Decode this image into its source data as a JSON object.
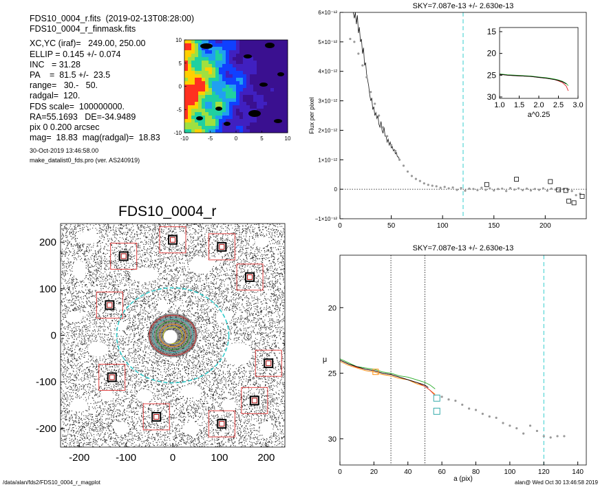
{
  "info": {
    "lines": [
      "FDS10_0004_r.fits  (2019-02-13T08:28:00)",
      "FDS10_0004_r_finmask.fits",
      "",
      "XC,YC (iraf)=   249.00, 250.00",
      "ELLIP = 0.145 +/- 0.074",
      "INC   = 31.28",
      "PA    =  81.5 +/-  23.5",
      "range=   30.-   50.",
      "radgal=  120.",
      "FDS scale=  100000000.",
      "RA=55.1693   DE=-34.9489",
      "pix 0 0.200 arcsec",
      "mag=  18.83  mag(radgal)=  18.83"
    ],
    "date_line": "30-Oct-2019 13:46:58.00",
    "program_line": "make_datalist0_fds.pro (ver. AS240919)"
  },
  "image_title": "FDS10_0004_r",
  "footer": {
    "path": "/data/alan/fds2/FDS10_0004_r_magplot",
    "stamp": "alan@  Wed Oct 30 13:46:58 2019"
  },
  "colors": {
    "axis": "#000000",
    "cyan_dash": "#33cccc",
    "red_box": "#e03030",
    "green": "#22aa22",
    "orange": "#ff8800",
    "red": "#dd2222",
    "magenta": "#aa2266",
    "gray_pts": "#999999"
  },
  "chart_data": [
    {
      "id": "thumbnail",
      "type": "heatmap",
      "title": "",
      "x_ticks": [
        "-10",
        "-5",
        "0",
        "5",
        "10"
      ],
      "y_ticks": [
        "10",
        "5",
        "0",
        "-5",
        "-10"
      ],
      "xlim": [
        -10,
        10
      ],
      "ylim": [
        -10,
        10
      ]
    },
    {
      "id": "sky_flux",
      "type": "line",
      "title": "SKY=7.087e-13 +/- 2.630e-13",
      "ylabel": "Flux per pixel",
      "xlabel": "",
      "xlim": [
        0,
        240
      ],
      "ylim": [
        -1e-12,
        6e-12
      ],
      "x_ticks": [
        "0",
        "50",
        "100",
        "150",
        "200"
      ],
      "y_ticks": [
        "6×10⁻¹²",
        "5×10⁻¹²",
        "4×10⁻¹²",
        "3×10⁻¹²",
        "2×10⁻¹²",
        "1×10⁻¹²",
        "0",
        "−1×10⁻¹²"
      ],
      "vline_x": 120,
      "series": [
        {
          "style": "line",
          "x": [
            13,
            14,
            15,
            16,
            17,
            18,
            19,
            20,
            21,
            22,
            23,
            24,
            25,
            26,
            27,
            28,
            29,
            30,
            31,
            32,
            33,
            34,
            35,
            36,
            37,
            38,
            39,
            40,
            41,
            42,
            43,
            44,
            45,
            46,
            47,
            48,
            49,
            50,
            51,
            52,
            53,
            54,
            55,
            56,
            57,
            58
          ],
          "y": [
            6e-12,
            5.8e-12,
            6e-12,
            5.6e-12,
            5.9e-12,
            5.3e-12,
            5.5e-12,
            5e-12,
            5.1e-12,
            4.6e-12,
            4.8e-12,
            4.2e-12,
            4.3e-12,
            3.9e-12,
            3.7e-12,
            3.5e-12,
            3.2e-12,
            3e-12,
            3.1e-12,
            2.7e-12,
            2.8e-12,
            2.5e-12,
            2.6e-12,
            2.4e-12,
            2.5e-12,
            2.2e-12,
            2.1e-12,
            2.3e-12,
            2e-12,
            1.9e-12,
            2.1e-12,
            1.8e-12,
            1.8e-12,
            1.6e-12,
            1.7e-12,
            1.5e-12,
            1.6e-12,
            1.4e-12,
            1.45e-12,
            1.3e-12,
            1.35e-12,
            1.2e-12,
            1.25e-12,
            1.1e-12,
            1.1e-12,
            1e-12
          ]
        },
        {
          "style": "points",
          "x": [
            10,
            14,
            18,
            22,
            26,
            30,
            34,
            38,
            42,
            46,
            50,
            54,
            58,
            62,
            66,
            70,
            74,
            78,
            82,
            86,
            90,
            94,
            98,
            102,
            106,
            110,
            114,
            118,
            122,
            126,
            130,
            134,
            138,
            142,
            146,
            150,
            154,
            158,
            162,
            166,
            170,
            174,
            178,
            182,
            186,
            190,
            194,
            198,
            202,
            206,
            210,
            214,
            218,
            222,
            226,
            230,
            234
          ],
          "y": [
            5.1e-12,
            5e-12,
            4.6e-12,
            4.2e-12,
            3.8e-12,
            3.3e-12,
            2.9e-12,
            2.5e-12,
            2.1e-12,
            1.8e-12,
            1.5e-12,
            1.3e-12,
            1e-12,
            8e-13,
            6e-13,
            4.5e-13,
            3.5e-13,
            2.8e-13,
            2e-13,
            1.5e-13,
            1.2e-13,
            1e-13,
            5e-14,
            8e-14,
            3e-14,
            6e-14,
            -2e-14,
            4e-14,
            -5e-14,
            2e-14,
            1e-14,
            -3e-14,
            5e-14,
            -2e-14,
            3e-14,
            -4e-14,
            1e-14,
            2e-14,
            -6e-14,
            4e-14,
            -1e-14,
            3e-14,
            -3e-14,
            2e-14,
            -4e-14,
            1e-14,
            -2e-14,
            3e-14,
            -5e-14,
            2e-14,
            -1e-14,
            -3e-14,
            1e-14,
            -2e-14,
            -6e-14,
            -2e-13,
            -1.5e-13
          ]
        },
        {
          "style": "squares",
          "x": [
            143,
            172,
            205,
            213,
            220,
            223,
            228,
            236
          ],
          "y": [
            1.6e-13,
            3.4e-13,
            2.6e-13,
            -2e-14,
            -4e-14,
            -4e-13,
            -4.6e-13,
            -2.4e-13
          ]
        }
      ]
    },
    {
      "id": "inset",
      "type": "line",
      "title": "",
      "xlabel": "a^0.25",
      "ylabel": "",
      "xlim": [
        1.0,
        3.0
      ],
      "ylim": [
        30,
        15
      ],
      "x_ticks": [
        "1.0",
        "1.5",
        "2.0",
        "2.5",
        "3.0"
      ],
      "y_ticks": [
        "15",
        "20",
        "25",
        "30"
      ],
      "series": [
        {
          "name": "",
          "style": "red",
          "x": [
            1.0,
            1.2,
            1.4,
            1.6,
            1.8,
            2.0,
            2.2,
            2.4,
            2.5,
            2.6,
            2.7,
            2.75
          ],
          "y": [
            24.8,
            25.0,
            25.1,
            25.2,
            25.3,
            25.5,
            25.7,
            26.0,
            26.3,
            26.7,
            27.5,
            28.6
          ]
        },
        {
          "name": "",
          "style": "green",
          "x": [
            1.0,
            1.2,
            1.4,
            1.6,
            1.8,
            2.0,
            2.2,
            2.4,
            2.5,
            2.6,
            2.7,
            2.75
          ],
          "y": [
            24.7,
            24.9,
            25.0,
            25.1,
            25.2,
            25.4,
            25.6,
            25.9,
            26.1,
            26.4,
            26.9,
            27.4
          ]
        },
        {
          "name": "",
          "style": "black",
          "x": [
            1.0,
            1.2,
            1.4,
            1.6,
            1.8,
            2.0,
            2.2,
            2.4,
            2.5,
            2.6,
            2.7
          ],
          "y": [
            24.8,
            25.0,
            25.1,
            25.2,
            25.3,
            25.5,
            25.7,
            26.0,
            26.2,
            26.5,
            27.0
          ]
        }
      ]
    },
    {
      "id": "mu_profile",
      "type": "line",
      "title": "SKY=7.087e-13 +/- 2.630e-13",
      "xlabel": "a (pix)",
      "ylabel": "μ",
      "xlim": [
        0,
        145
      ],
      "ylim": [
        32,
        16
      ],
      "x_ticks": [
        "0",
        "20",
        "40",
        "60",
        "80",
        "100",
        "120",
        "140"
      ],
      "y_ticks": [
        "20",
        "25",
        "30"
      ],
      "vlines_dotted": [
        30,
        50
      ],
      "vline_dashed": 120,
      "series": [
        {
          "name": "",
          "style": "green",
          "x": [
            0,
            5,
            10,
            15,
            20,
            25,
            30,
            35,
            40,
            45,
            50,
            53,
            56
          ],
          "y": [
            23.9,
            24.2,
            24.5,
            24.6,
            24.7,
            24.9,
            25.0,
            25.2,
            25.3,
            25.5,
            25.7,
            25.9,
            26.2
          ]
        },
        {
          "name": "",
          "style": "orange",
          "x": [
            0,
            5,
            10,
            15,
            20,
            25,
            30,
            35,
            40,
            45,
            50,
            53,
            56
          ],
          "y": [
            24.1,
            24.4,
            24.6,
            24.8,
            24.9,
            25.1,
            25.2,
            25.4,
            25.5,
            25.8,
            26.0,
            26.3,
            26.6
          ]
        },
        {
          "name": "",
          "style": "red",
          "x": [
            0,
            5,
            10,
            15,
            20,
            25,
            30,
            35,
            40,
            45,
            50,
            53,
            56
          ],
          "y": [
            24.0,
            24.3,
            24.55,
            24.7,
            24.8,
            25.0,
            25.1,
            25.3,
            25.5,
            25.7,
            26.0,
            26.3,
            26.7
          ]
        },
        {
          "name": "",
          "style": "black",
          "x": [
            0,
            5,
            10,
            15,
            20,
            25,
            30,
            35,
            40,
            45,
            50,
            52
          ],
          "y": [
            24.0,
            24.3,
            24.5,
            24.7,
            24.8,
            25.0,
            25.1,
            25.3,
            25.5,
            25.7,
            25.9,
            26.1
          ]
        },
        {
          "name": "",
          "style": "points",
          "x": [
            60,
            64,
            68,
            72,
            76,
            80,
            84,
            88,
            92,
            96,
            100,
            104,
            108,
            112,
            116,
            120,
            124,
            128,
            132
          ],
          "y": [
            26.8,
            27.0,
            27.1,
            27.4,
            27.7,
            27.8,
            28.1,
            28.3,
            28.4,
            28.8,
            29.0,
            29.2,
            29.6,
            29.0,
            29.4,
            29.8,
            29.9,
            29.8,
            29.8
          ]
        },
        {
          "name": "",
          "style": "squares_orange",
          "x": [
            21
          ],
          "y": [
            24.9
          ]
        },
        {
          "name": "",
          "style": "squares_cyan",
          "x": [
            57,
            57
          ],
          "y": [
            26.9,
            27.9
          ]
        }
      ]
    },
    {
      "id": "image",
      "type": "scatter",
      "title": "FDS10_0004_r",
      "xlim": [
        -240,
        240
      ],
      "ylim": [
        -240,
        240
      ],
      "x_ticks": [
        "-200",
        "-100",
        "0",
        "100",
        "200"
      ],
      "y_ticks": [
        "200",
        "100",
        "0",
        "-100",
        "-200"
      ],
      "ellipse_a": 120,
      "ellipse_b": 102,
      "masked_stars": [
        {
          "x": -105,
          "y": 170
        },
        {
          "x": 0,
          "y": 205
        },
        {
          "x": 105,
          "y": 190
        },
        {
          "x": 165,
          "y": 125
        },
        {
          "x": -135,
          "y": 65
        },
        {
          "x": 205,
          "y": -60
        },
        {
          "x": -130,
          "y": -90
        },
        {
          "x": 175,
          "y": -140
        },
        {
          "x": -35,
          "y": -175
        },
        {
          "x": 105,
          "y": -190
        }
      ]
    }
  ]
}
